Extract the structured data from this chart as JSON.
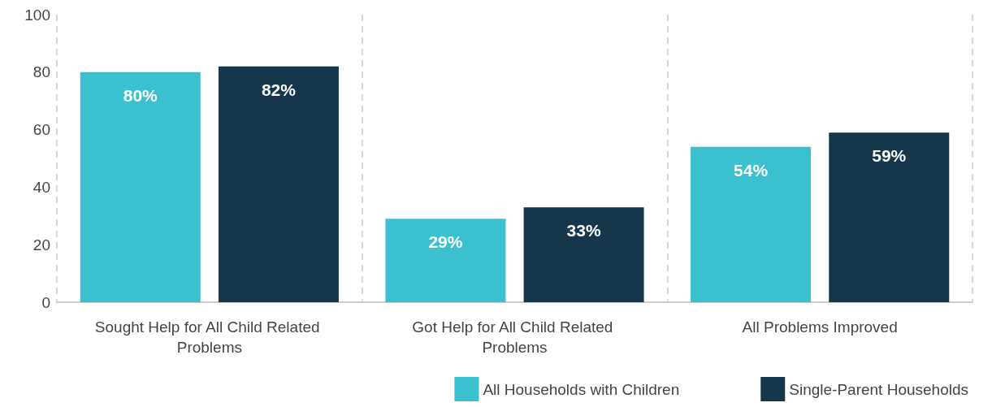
{
  "chart_data": {
    "type": "bar",
    "categories": [
      "Sought Help for All Child Related Problems",
      "Got Help for All Child Related Problems",
      "All Problems Improved"
    ],
    "series": [
      {
        "name": "All Households with Children",
        "color": "#3bc0d0",
        "values": [
          80,
          29,
          54
        ],
        "value_labels": [
          "80%",
          "29%",
          "54%"
        ]
      },
      {
        "name": "Single-Parent Households",
        "color": "#15364b",
        "values": [
          82,
          33,
          59
        ],
        "value_labels": [
          "82%",
          "33%",
          "59%"
        ]
      }
    ],
    "ylim": [
      0,
      100
    ],
    "yticks": [
      0,
      20,
      40,
      60,
      80,
      100
    ],
    "grid": "x",
    "legend": "bottom right"
  }
}
